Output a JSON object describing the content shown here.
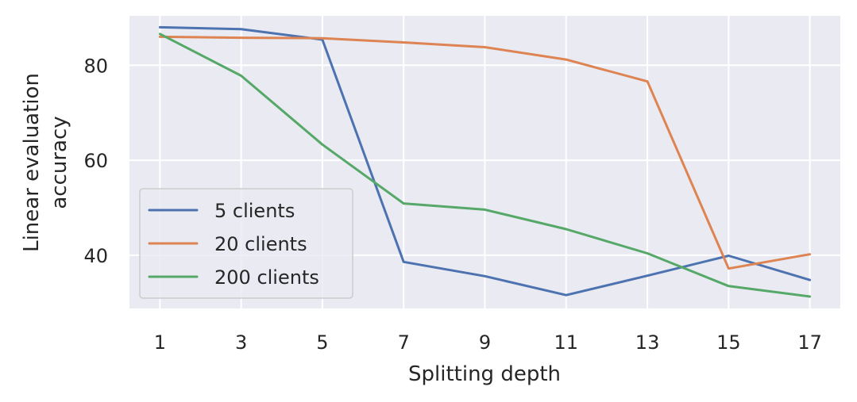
{
  "chart_data": {
    "type": "line",
    "title": "",
    "xlabel": "Splitting depth",
    "ylabel_lines": [
      "Linear evaluation",
      "accuracy"
    ],
    "x": [
      1,
      3,
      5,
      7,
      9,
      11,
      13,
      15,
      17
    ],
    "x_ticks": [
      "1",
      "3",
      "5",
      "7",
      "9",
      "11",
      "13",
      "15",
      "17"
    ],
    "y_ticks": [
      "40",
      "60",
      "80"
    ],
    "xlim": [
      0.25,
      17.75
    ],
    "ylim": [
      28.8,
      90.4
    ],
    "grid": true,
    "legend_position": "lower-left",
    "series": [
      {
        "name": "5 clients",
        "color": "#4c72b0",
        "values": [
          88.0,
          87.6,
          85.4,
          38.6,
          35.6,
          31.6,
          35.7,
          39.9,
          34.8
        ]
      },
      {
        "name": "20 clients",
        "color": "#dd8452",
        "values": [
          86.0,
          85.8,
          85.7,
          84.8,
          83.8,
          81.2,
          76.6,
          37.2,
          40.2
        ]
      },
      {
        "name": "200 clients",
        "color": "#55a868",
        "values": [
          86.6,
          77.8,
          63.3,
          50.9,
          49.6,
          45.5,
          40.4,
          33.5,
          31.3
        ]
      }
    ]
  }
}
